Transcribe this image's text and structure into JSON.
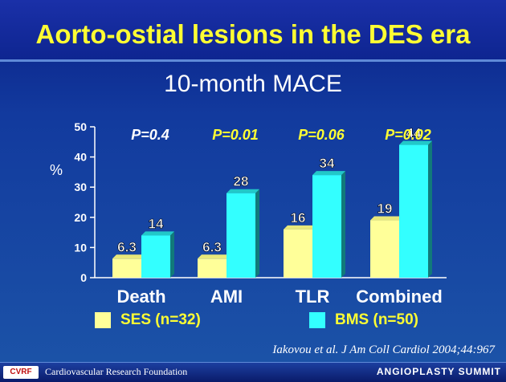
{
  "slide": {
    "title": "Aorto-ostial lesions in the DES era",
    "subtitle": "10-month MACE",
    "citation": "Iakovou et al. J Am Coll Cardiol 2004;44:967",
    "footer_org": "Cardiovascular Research Foundation",
    "footer_logo": "CVRF",
    "footer_event": "ANGIOPLASTY SUMMIT"
  },
  "chart_data": {
    "type": "bar",
    "title": "10-month MACE",
    "ylabel": "%",
    "ylim": [
      0,
      50
    ],
    "yticks": [
      0,
      10,
      20,
      30,
      40,
      50
    ],
    "categories": [
      "Death",
      "AMI",
      "TLR",
      "Combined"
    ],
    "series": [
      {
        "name": "SES (n=32)",
        "values": [
          6.3,
          6.3,
          16,
          19
        ],
        "labels": [
          "6.3",
          "6.3",
          "16",
          "19"
        ],
        "color": "#ffff99"
      },
      {
        "name": "BMS (n=50)",
        "values": [
          14,
          28,
          34,
          44
        ],
        "labels": [
          "14",
          "28",
          "34",
          "44"
        ],
        "color": "#33ffff"
      }
    ],
    "p_values": [
      "P=0.4",
      "P=0.01",
      "P=0.06",
      "P=0.02"
    ],
    "p_value_colors": [
      "#ffffff",
      "#ffff33",
      "#ffff33",
      "#ffff33"
    ],
    "legend_position": "bottom",
    "grid": false
  }
}
